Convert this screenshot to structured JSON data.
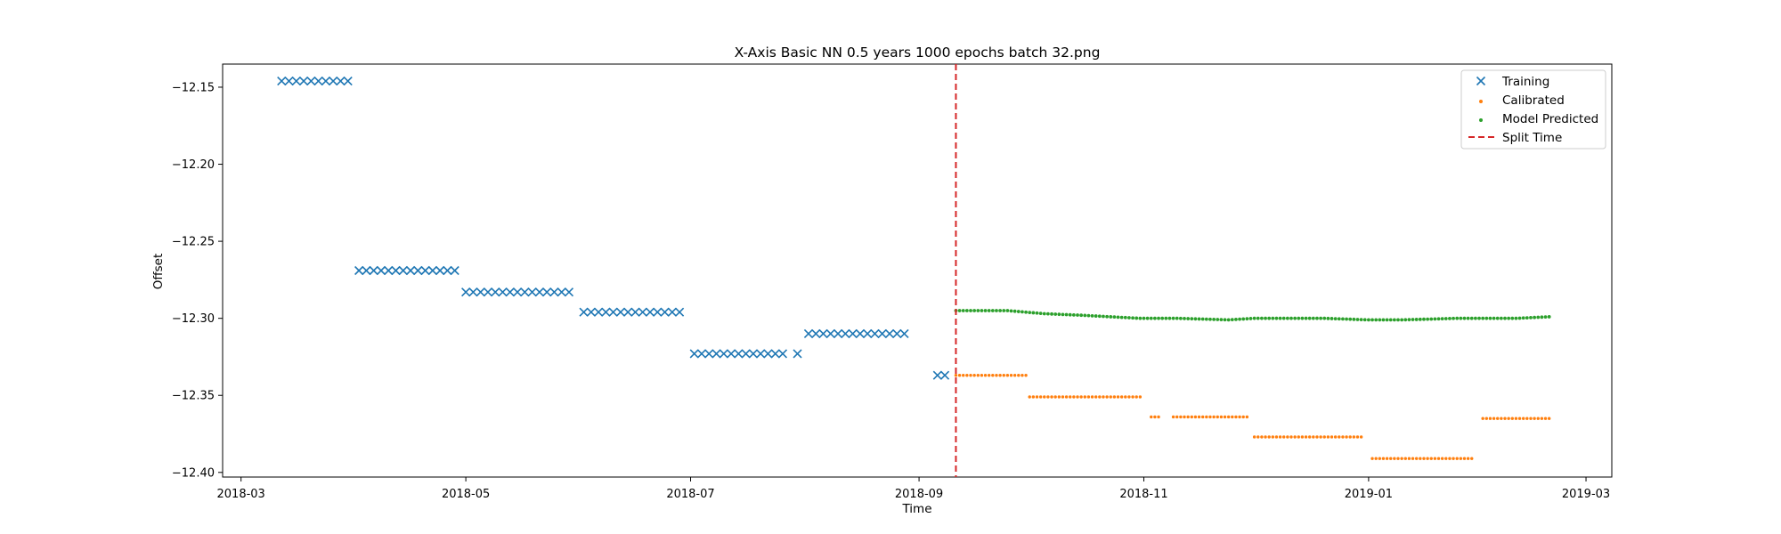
{
  "chart_data": {
    "type": "scatter",
    "title": "X-Axis Basic NN 0.5 years 1000 epochs batch 32.png",
    "xlabel": "Time",
    "ylabel": "Offset",
    "xlim": [
      "2018-02-24",
      "2019-03-08"
    ],
    "ylim": [
      -12.403,
      -12.135
    ],
    "x_ticks": [
      "2018-03-01",
      "2018-05-01",
      "2018-07-01",
      "2018-09-01",
      "2018-11-01",
      "2019-01-01",
      "2019-03-01"
    ],
    "x_tick_labels": [
      "2018-03",
      "2018-05",
      "2018-07",
      "2018-09",
      "2018-11",
      "2019-01",
      "2019-03"
    ],
    "y_ticks": [
      -12.15,
      -12.2,
      -12.25,
      -12.3,
      -12.35,
      -12.4
    ],
    "y_tick_labels": [
      "−12.15",
      "−12.20",
      "−12.25",
      "−12.30",
      "−12.35",
      "−12.40"
    ],
    "grid": false,
    "legend_position": "top-right",
    "series": [
      {
        "name": "Training",
        "marker": "x",
        "color": "#1f77b4",
        "segments": [
          {
            "start": "2018-03-12",
            "end": "2018-03-30",
            "y": -12.146
          },
          {
            "start": "2018-04-02",
            "end": "2018-04-28",
            "y": -12.269
          },
          {
            "start": "2018-05-01",
            "end": "2018-05-30",
            "y": -12.283
          },
          {
            "start": "2018-06-02",
            "end": "2018-06-29",
            "y": -12.296
          },
          {
            "start": "2018-07-02",
            "end": "2018-07-26",
            "y": -12.323
          },
          {
            "start": "2018-07-30",
            "end": "2018-07-30",
            "y": -12.323
          },
          {
            "start": "2018-08-02",
            "end": "2018-08-29",
            "y": -12.31
          },
          {
            "start": "2018-09-06",
            "end": "2018-09-09",
            "y": -12.337
          }
        ]
      },
      {
        "name": "Calibrated",
        "marker": "dot",
        "color": "#ff7f0e",
        "segments": [
          {
            "start": "2018-09-11",
            "end": "2018-09-30",
            "y": -12.337
          },
          {
            "start": "2018-10-01",
            "end": "2018-10-31",
            "y": -12.351
          },
          {
            "start": "2018-11-03",
            "end": "2018-11-05",
            "y": -12.364
          },
          {
            "start": "2018-11-09",
            "end": "2018-11-29",
            "y": -12.364
          },
          {
            "start": "2018-12-01",
            "end": "2018-12-30",
            "y": -12.377
          },
          {
            "start": "2019-01-02",
            "end": "2019-01-29",
            "y": -12.391
          },
          {
            "start": "2019-02-01",
            "end": "2019-02-19",
            "y": -12.365
          }
        ]
      },
      {
        "name": "Model Predicted",
        "marker": "dot",
        "color": "#2ca02c",
        "curve": [
          [
            "2018-09-11",
            -12.295
          ],
          [
            "2018-09-25",
            -12.295
          ],
          [
            "2018-10-05",
            -12.297
          ],
          [
            "2018-10-15",
            -12.298
          ],
          [
            "2018-10-31",
            -12.3
          ],
          [
            "2018-11-10",
            -12.3
          ],
          [
            "2018-11-24",
            -12.301
          ],
          [
            "2018-12-01",
            -12.3
          ],
          [
            "2018-12-20",
            -12.3
          ],
          [
            "2019-01-01",
            -12.301
          ],
          [
            "2019-01-10",
            -12.301
          ],
          [
            "2019-01-25",
            -12.3
          ],
          [
            "2019-02-10",
            -12.3
          ],
          [
            "2019-02-19",
            -12.299
          ]
        ]
      }
    ],
    "split_line": {
      "name": "Split Time",
      "x": "2018-09-11",
      "color": "#d62728",
      "style": "dashed"
    }
  }
}
